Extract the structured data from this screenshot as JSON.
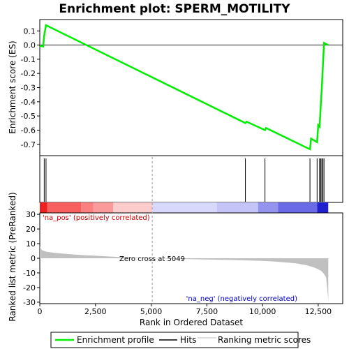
{
  "chart_data": {
    "type": "line",
    "title": "Enrichment plot: SPERM_MOTILITY",
    "top_panel": {
      "ylabel": "Enrichment score (ES)",
      "ylim": [
        -0.78,
        0.18
      ],
      "yticks": [
        0.1,
        0.0,
        -0.1,
        -0.2,
        -0.3,
        -0.4,
        -0.5,
        -0.6,
        -0.7
      ],
      "ytick_labels": [
        "0.1",
        "0.0",
        "-0.1",
        "-0.2",
        "-0.3",
        "-0.4",
        "-0.5",
        "-0.6",
        "-0.7"
      ],
      "series": [
        {
          "name": "Enrichment profile",
          "color": "#00ee00",
          "x": [
            0,
            150,
            200,
            280,
            9230,
            9280,
            10110,
            10160,
            12130,
            12180,
            12450,
            12500,
            12560,
            12610,
            12660,
            12710,
            12760,
            12950
          ],
          "y": [
            -0.005,
            -0.01,
            0.07,
            0.14,
            -0.55,
            -0.54,
            -0.6,
            -0.585,
            -0.735,
            -0.66,
            -0.685,
            -0.565,
            -0.575,
            -0.44,
            -0.305,
            -0.145,
            0.015,
            0.0
          ]
        }
      ]
    },
    "hits": {
      "name": "Hits",
      "x": [
        200,
        280,
        9230,
        10110,
        12130,
        12450,
        12560,
        12610,
        12660,
        12710,
        12760
      ]
    },
    "color_bar": {
      "segments": [
        {
          "start": 0,
          "end": 330,
          "color": "#ee2020"
        },
        {
          "start": 330,
          "end": 1850,
          "color": "#f86060"
        },
        {
          "start": 1850,
          "end": 2400,
          "color": "#fa8080"
        },
        {
          "start": 2400,
          "end": 3300,
          "color": "#fb9a9a"
        },
        {
          "start": 3300,
          "end": 5049,
          "color": "#fccccc"
        },
        {
          "start": 5049,
          "end": 7950,
          "color": "#d8d8fc"
        },
        {
          "start": 7950,
          "end": 9800,
          "color": "#c4c4f8"
        },
        {
          "start": 9800,
          "end": 10700,
          "color": "#9494ee"
        },
        {
          "start": 10700,
          "end": 12450,
          "color": "#6a6ae6"
        },
        {
          "start": 12450,
          "end": 12950,
          "color": "#2020d0"
        }
      ]
    },
    "bottom_panel": {
      "ylabel": "Ranked list metric (PreRanked)",
      "xlabel": "Rank in Ordered Dataset",
      "xlim": [
        0,
        13600
      ],
      "ylim": [
        -31,
        31
      ],
      "xticks": [
        0,
        2500,
        5000,
        7500,
        10000,
        12500
      ],
      "xtick_labels": [
        "0",
        "2,500",
        "5,000",
        "7,500",
        "10,000",
        "12,500"
      ],
      "yticks": [
        30,
        20,
        10,
        0,
        -10,
        -20,
        -30
      ],
      "ytick_labels": [
        "30",
        "20",
        "10",
        "0",
        "-10",
        "-20",
        "-30"
      ],
      "metric": {
        "name": "Ranking metric scores",
        "x": [
          0,
          100,
          300,
          600,
          1000,
          1500,
          2000,
          2500,
          3000,
          3500,
          4000,
          4500,
          5049,
          6000,
          7000,
          8000,
          9000,
          10000,
          10500,
          11000,
          11500,
          12000,
          12300,
          12500,
          12650,
          12750,
          12850,
          12900,
          12950
        ],
        "y": [
          8,
          5.5,
          4.5,
          3.8,
          3.2,
          2.6,
          2.1,
          1.7,
          1.3,
          0.9,
          0.6,
          0.3,
          0,
          -0.4,
          -0.7,
          -1.0,
          -1.3,
          -1.8,
          -2.2,
          -2.8,
          -3.5,
          -4.8,
          -6.2,
          -7.5,
          -8.8,
          -10.5,
          -13,
          -20,
          -29
        ]
      },
      "zero_cross_x": 5049,
      "annotations": {
        "pos_label": "'na_pos' (positively correlated)",
        "neg_label": "'na_neg' (negatively correlated)",
        "zero_cross": "Zero cross at 5049"
      }
    },
    "legend": {
      "placement": "bottom",
      "items": [
        {
          "label": "Enrichment profile",
          "color": "#00ee00"
        },
        {
          "label": "Hits",
          "color": "#000000"
        },
        {
          "label": "Ranking metric scores",
          "color": "#c0c0c0"
        }
      ]
    },
    "x_max_rank": 12950
  }
}
